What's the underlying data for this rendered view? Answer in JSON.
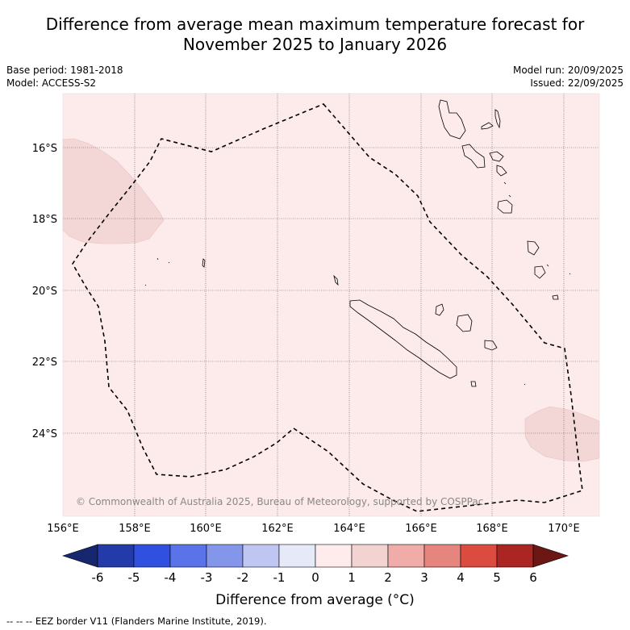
{
  "title_line1": "Difference from average mean maximum temperature forecast for",
  "title_line2": "November 2025 to January 2026",
  "base_period": "Base period: 1981-2018",
  "model": "Model: ACCESS-S2",
  "model_run": "Model run: 20/09/2025",
  "issued": "Issued: 22/09/2025",
  "copyright": "© Commonwealth of Australia 2025, Bureau of Meteorology, supported by COSPPac",
  "lon_labels": [
    "156°E",
    "158°E",
    "160°E",
    "162°E",
    "164°E",
    "166°E",
    "168°E",
    "170°E"
  ],
  "lat_labels": [
    "16°S",
    "18°S",
    "20°S",
    "22°S",
    "24°S"
  ],
  "colorbar": {
    "ticks": [
      "-6",
      "-5",
      "-4",
      "-3",
      "-2",
      "-1",
      "0",
      "1",
      "2",
      "3",
      "4",
      "5",
      "6"
    ],
    "colors": [
      "#223ba8",
      "#3050e0",
      "#5a73e8",
      "#8496ea",
      "#c0c6f2",
      "#e6eaf8",
      "#fdeceb",
      "#f3d3d2",
      "#efaca8",
      "#e5857e",
      "#dc4b3f",
      "#ab2623"
    ],
    "under_color": "#16266f",
    "over_color": "#6b1714",
    "label": "Difference from average (°C)"
  },
  "footnote": "--  --  -- EEZ border V11 (Flanders Marine Institute, 2019).",
  "colors": {
    "background_anomaly": "#fcebea",
    "warm_patch": "#f2d7d6",
    "grid": "#555555"
  }
}
